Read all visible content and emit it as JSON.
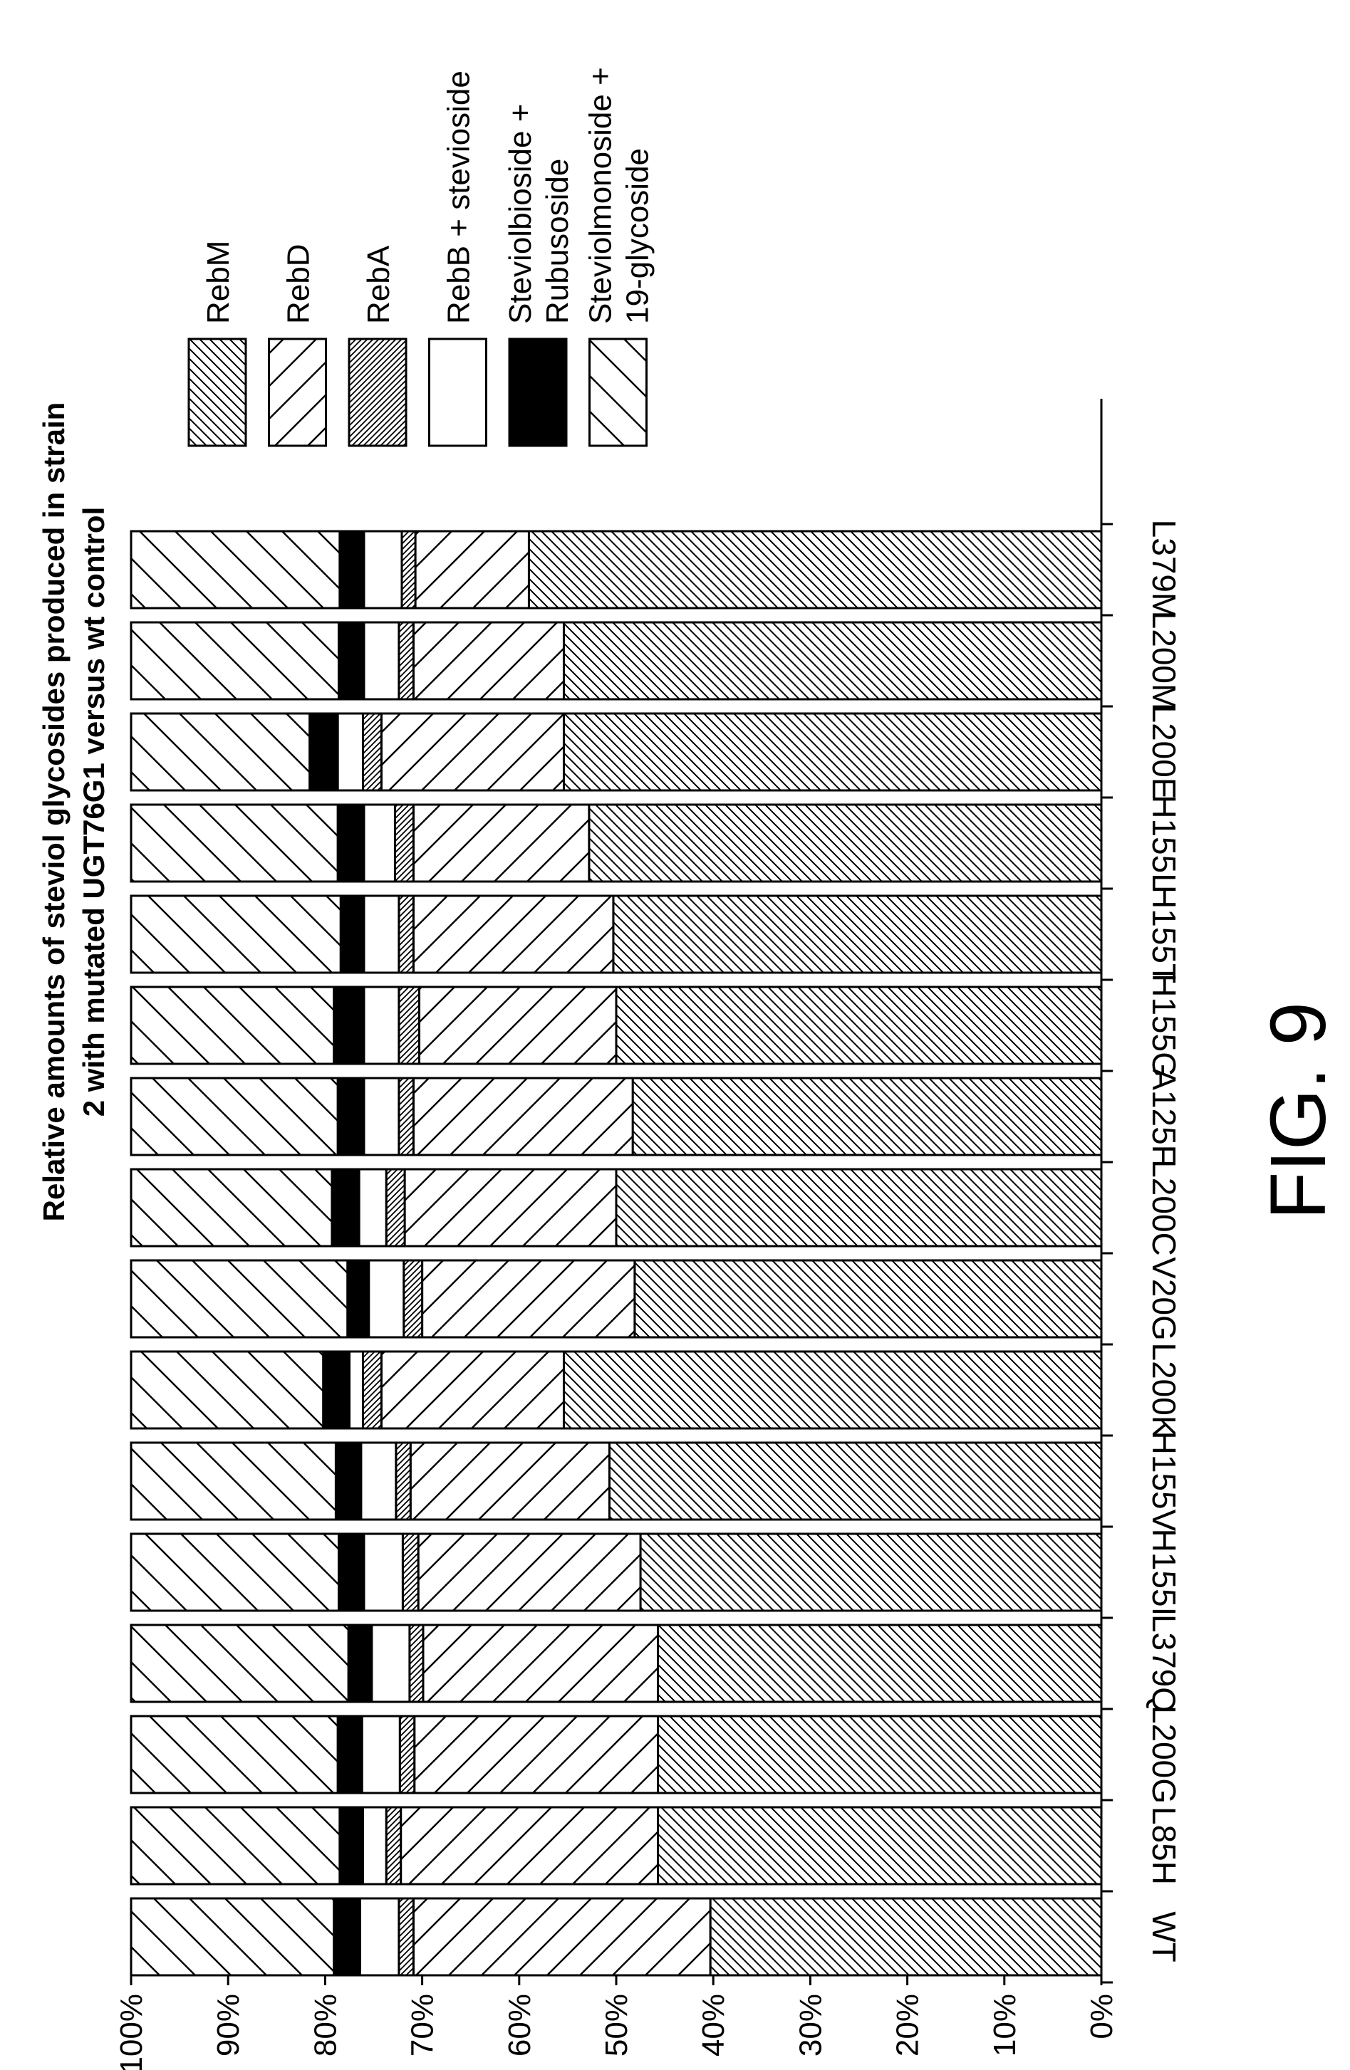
{
  "chart_data": {
    "type": "bar",
    "stacked": true,
    "title": [
      "Relative amounts of steviol glycosides produced in strain",
      "2 with mutated UGT76G1 versus wt control"
    ],
    "categories": [
      "WT",
      "L85H",
      "L200G",
      "L379Q",
      "H155I",
      "H155V",
      "L200K",
      "V20G",
      "L200C",
      "A125F",
      "H155G",
      "H155T",
      "H155L",
      "L200E",
      "L200M",
      "L379M"
    ],
    "yticks": [
      "0%",
      "10%",
      "20%",
      "30%",
      "40%",
      "50%",
      "60%",
      "70%",
      "80%",
      "90%",
      "100%"
    ],
    "ylim": [
      0,
      100
    ],
    "series": [
      {
        "name": "RebM",
        "pattern": "hatch-dense",
        "values": [
          40.3,
          45.7,
          45.7,
          45.7,
          47.5,
          50.7,
          55.4,
          48.1,
          50.0,
          48.3,
          50.0,
          50.3,
          52.8,
          55.4,
          55.4,
          59.0
        ]
      },
      {
        "name": "RebD",
        "pattern": "hatch-forward",
        "values": [
          30.6,
          26.5,
          25.1,
          24.2,
          22.9,
          20.5,
          18.8,
          21.9,
          21.8,
          22.6,
          20.3,
          20.6,
          18.1,
          18.8,
          15.5,
          11.7
        ]
      },
      {
        "name": "RebA",
        "pattern": "hatch-fine",
        "values": [
          1.5,
          1.5,
          1.5,
          1.4,
          1.6,
          1.5,
          1.9,
          1.9,
          1.9,
          1.5,
          2.1,
          1.5,
          1.9,
          1.9,
          1.5,
          1.4
        ]
      },
      {
        "name": "RebB + stevioside",
        "pattern": "white",
        "values": [
          4.0,
          2.4,
          3.9,
          3.9,
          4.0,
          3.6,
          1.4,
          3.6,
          2.8,
          3.6,
          3.6,
          3.6,
          3.2,
          2.6,
          3.6,
          3.9
        ]
      },
      {
        "name": "Steviolbioside + Rubusoside",
        "pattern": "black",
        "values": [
          2.7,
          2.4,
          2.5,
          2.4,
          2.6,
          2.6,
          2.7,
          2.2,
          2.8,
          2.7,
          3.1,
          2.4,
          2.7,
          2.9,
          2.6,
          2.5
        ]
      },
      {
        "name": "Steviolmonoside + 19-glycoside",
        "pattern": "hatch-back",
        "values": [
          20.9,
          21.5,
          21.3,
          22.4,
          21.4,
          21.1,
          19.8,
          22.3,
          20.7,
          21.3,
          20.9,
          21.6,
          21.3,
          18.4,
          21.4,
          21.5
        ]
      }
    ],
    "legend": {
      "position": "top-right"
    },
    "grid": false
  },
  "figure_label": "FIG. 9"
}
